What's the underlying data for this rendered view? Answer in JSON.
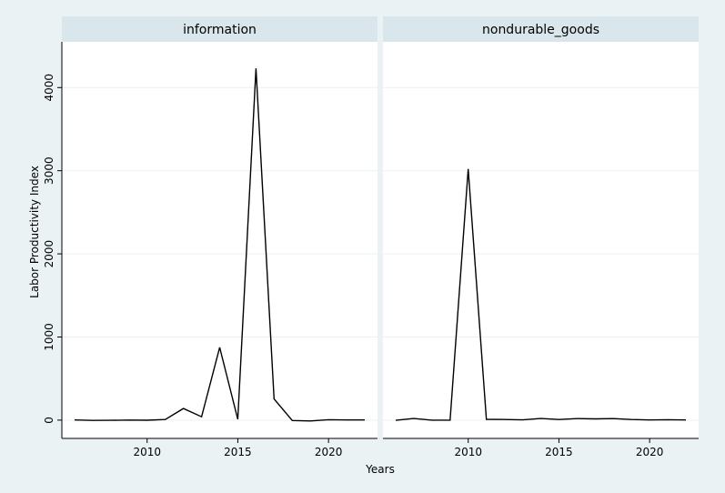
{
  "chart_data": {
    "type": "line",
    "xlabel": "Years",
    "ylabel": "Labor Productivity Index",
    "xlim": [
      2005.3,
      2022.7
    ],
    "ylim": [
      -220,
      4550
    ],
    "xticks": [
      2010,
      2015,
      2020
    ],
    "yticks": [
      0,
      1000,
      2000,
      3000,
      4000
    ],
    "grid": true,
    "series_color": "#000000",
    "panels": [
      {
        "name": "information",
        "x": [
          2006,
          2007,
          2008,
          2009,
          2010,
          2011,
          2012,
          2013,
          2014,
          2015,
          2016,
          2017,
          2018,
          2019,
          2020,
          2021,
          2022
        ],
        "values": [
          2,
          -3,
          -2,
          1,
          -1,
          8,
          140,
          40,
          875,
          10,
          4230,
          255,
          -5,
          -10,
          5,
          2,
          2
        ]
      },
      {
        "name": "nondurable_goods",
        "x": [
          2006,
          2007,
          2008,
          2009,
          2010,
          2011,
          2012,
          2013,
          2014,
          2015,
          2016,
          2017,
          2018,
          2019,
          2020,
          2021,
          2022
        ],
        "values": [
          -2,
          20,
          0,
          0,
          3020,
          10,
          8,
          3,
          20,
          8,
          18,
          15,
          18,
          8,
          2,
          5,
          2
        ]
      }
    ]
  }
}
